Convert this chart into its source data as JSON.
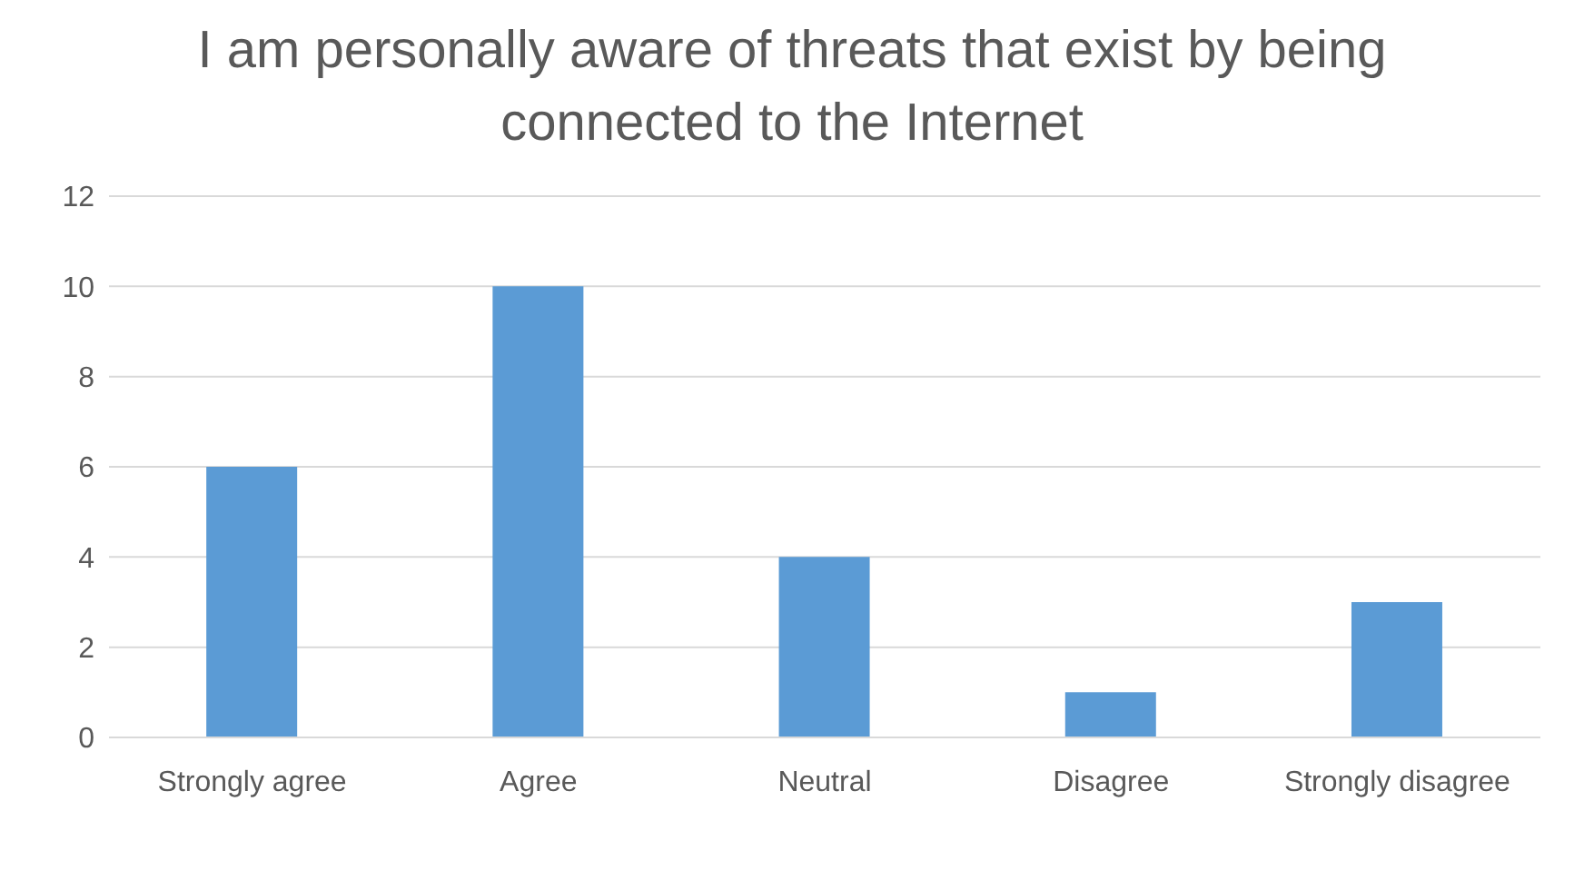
{
  "chart_data": {
    "type": "bar",
    "title": "I am personally aware of threats that exist by being connected to the Internet",
    "categories": [
      "Strongly agree",
      "Agree",
      "Neutral",
      "Disagree",
      "Strongly disagree"
    ],
    "values": [
      6,
      10,
      4,
      1,
      3
    ],
    "color": "#5b9bd5",
    "ylim": [
      0,
      12
    ],
    "yticks": [
      0,
      2,
      4,
      6,
      8,
      10,
      12
    ],
    "grid": "y"
  }
}
